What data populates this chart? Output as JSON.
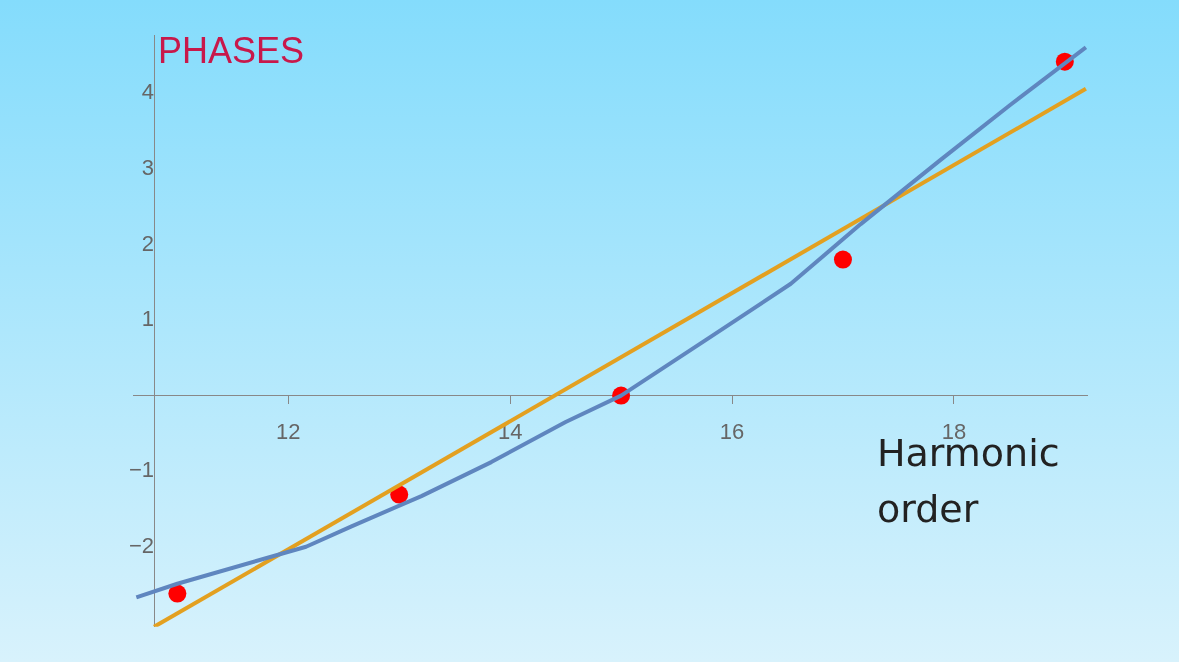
{
  "chart_data": {
    "type": "scatter",
    "title": "PHASES",
    "xlabel": "Harmonic order",
    "xlim": [
      10.6,
      19.2
    ],
    "ylim": [
      -3.06,
      4.77
    ],
    "xticks": [
      12,
      14,
      16,
      18
    ],
    "yticks": [
      {
        "value": -2,
        "label": "−2"
      },
      {
        "value": -1,
        "label": "−1"
      },
      1,
      2,
      3,
      4
    ],
    "grid": false,
    "legend": false,
    "marker": "circle",
    "series": [
      {
        "type": "line",
        "color": "#5f86bf",
        "x": [
          10.63,
          11.0,
          12.16,
          12.57,
          13.2,
          13.83,
          14.5,
          15.0,
          15.81,
          16.53,
          17.16,
          17.88,
          18.51,
          19.19
        ],
        "values": [
          -2.67,
          -2.49,
          -2.0,
          -1.73,
          -1.33,
          -0.88,
          -0.35,
          0.0,
          0.78,
          1.48,
          2.27,
          3.12,
          3.85,
          4.61
        ],
        "marker": "none"
      },
      {
        "type": "line",
        "color": "#e3a020",
        "x": [
          10.79,
          19.19
        ],
        "values": [
          -3.06,
          4.06
        ],
        "marker": "none"
      },
      {
        "color": "#ff0000",
        "x": [
          11,
          13,
          15,
          17,
          19
        ],
        "values": [
          -2.62,
          -1.31,
          0.0,
          1.8,
          4.42
        ]
      }
    ]
  }
}
